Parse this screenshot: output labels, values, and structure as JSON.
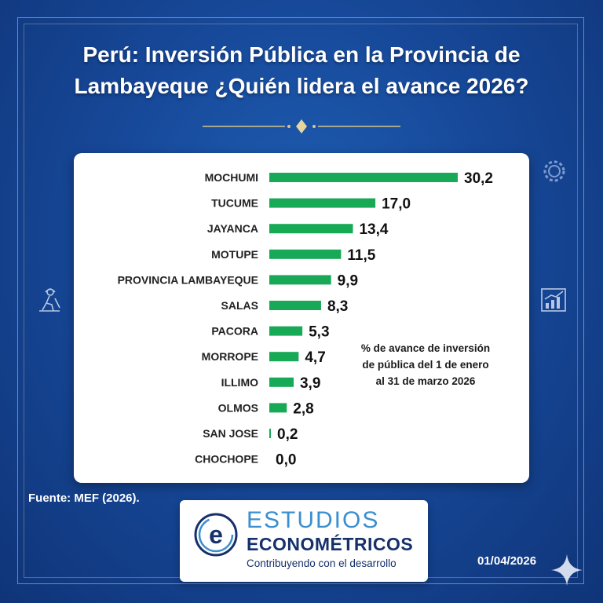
{
  "title": "Perú: Inversión Pública en la Provincia de Lambayeque ¿Quién lidera el avance 2026?",
  "chart_data": {
    "type": "bar",
    "orientation": "horizontal",
    "categories": [
      "MOCHUMI",
      "TUCUME",
      "JAYANCA",
      "MOTUPE",
      "PROVINCIA LAMBAYEQUE",
      "SALAS",
      "PACORA",
      "MORROPE",
      "ILLIMO",
      "OLMOS",
      "SAN JOSE",
      "CHOCHOPE"
    ],
    "values": [
      30.2,
      17.0,
      13.4,
      11.5,
      9.9,
      8.3,
      5.3,
      4.7,
      3.9,
      2.8,
      0.2,
      0.0
    ],
    "value_labels": [
      "30,2",
      "17,0",
      "13,4",
      "11,5",
      "9,9",
      "8,3",
      "5,3",
      "4,7",
      "3,9",
      "2,8",
      "0,2",
      "0,0"
    ],
    "bar_color": "#18a957",
    "xlim": [
      0,
      30.2
    ]
  },
  "note": "% de avance de inversión de pública del 1 de enero al 31 de marzo 2026",
  "source": "Fuente: MEF (2026).",
  "logo": {
    "line1": "ESTUDIOS",
    "line2": "ECONOMÉTRICOS",
    "tagline": "Contribuyendo con el desarrollo",
    "mark_letter": "e"
  },
  "date": "01/04/2026",
  "colors": {
    "background": "#17499a",
    "accent_gold": "#d8c48a",
    "logo_blue": "#15306a",
    "logo_light_blue": "#3a8fd0"
  },
  "icons": [
    "worker-icon",
    "gear-icon",
    "chart-growth-icon",
    "sparkle-icon"
  ]
}
